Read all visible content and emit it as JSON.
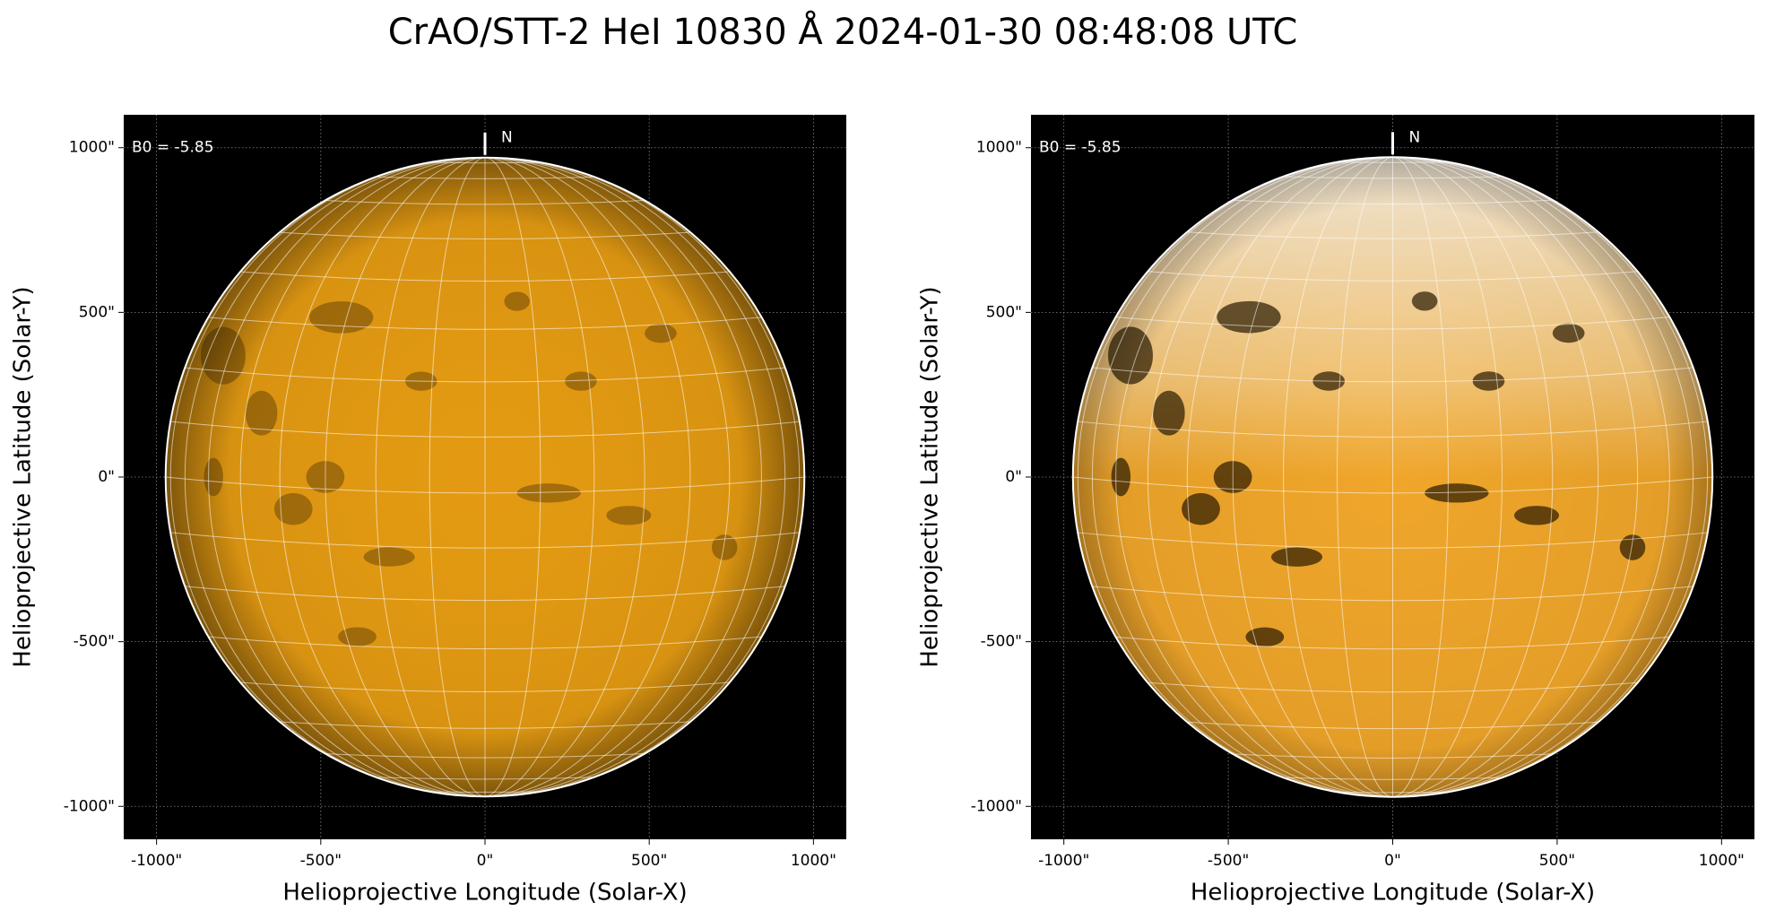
{
  "suptitle": "CrAO/STT-2 HeI 10830 Å 2024-01-30 08:48:08 UTC",
  "chart_data": [
    {
      "type": "image",
      "x_label": "Helioprojective Longitude (Solar-X)",
      "y_label": "Helioprojective Latitude (Solar-Y)",
      "annotation": "B0 = -5.85",
      "north_label": "N",
      "xlim": [
        -1100,
        1100
      ],
      "ylim": [
        -1100,
        1100
      ],
      "xticks": [
        {
          "value": -1000,
          "label": "-1000\""
        },
        {
          "value": -500,
          "label": "-500\""
        },
        {
          "value": 0,
          "label": "0\""
        },
        {
          "value": 500,
          "label": "500\""
        },
        {
          "value": 1000,
          "label": "1000\""
        }
      ],
      "yticks": [
        {
          "value": -1000,
          "label": "-1000\""
        },
        {
          "value": -500,
          "label": "-500\""
        },
        {
          "value": 0,
          "label": "0\""
        },
        {
          "value": 500,
          "label": "500\""
        },
        {
          "value": 1000,
          "label": "1000\""
        }
      ],
      "grid": true,
      "color": "#e39a12"
    },
    {
      "type": "image",
      "x_label": "Helioprojective Longitude (Solar-X)",
      "y_label": "Helioprojective Latitude (Solar-Y)",
      "annotation": "B0 = -5.85",
      "north_label": "N",
      "xlim": [
        -1100,
        1100
      ],
      "ylim": [
        -1100,
        1100
      ],
      "xticks": [
        {
          "value": -1000,
          "label": "-1000\""
        },
        {
          "value": -500,
          "label": "-500\""
        },
        {
          "value": 0,
          "label": "0\""
        },
        {
          "value": 500,
          "label": "500\""
        },
        {
          "value": 1000,
          "label": "1000\""
        }
      ],
      "yticks": [
        {
          "value": -1000,
          "label": "-1000\""
        },
        {
          "value": -500,
          "label": "-500\""
        },
        {
          "value": 0,
          "label": "0\""
        },
        {
          "value": 500,
          "label": "500\""
        },
        {
          "value": 1000,
          "label": "1000\""
        }
      ],
      "grid": true,
      "color": "#f0a62a"
    }
  ]
}
